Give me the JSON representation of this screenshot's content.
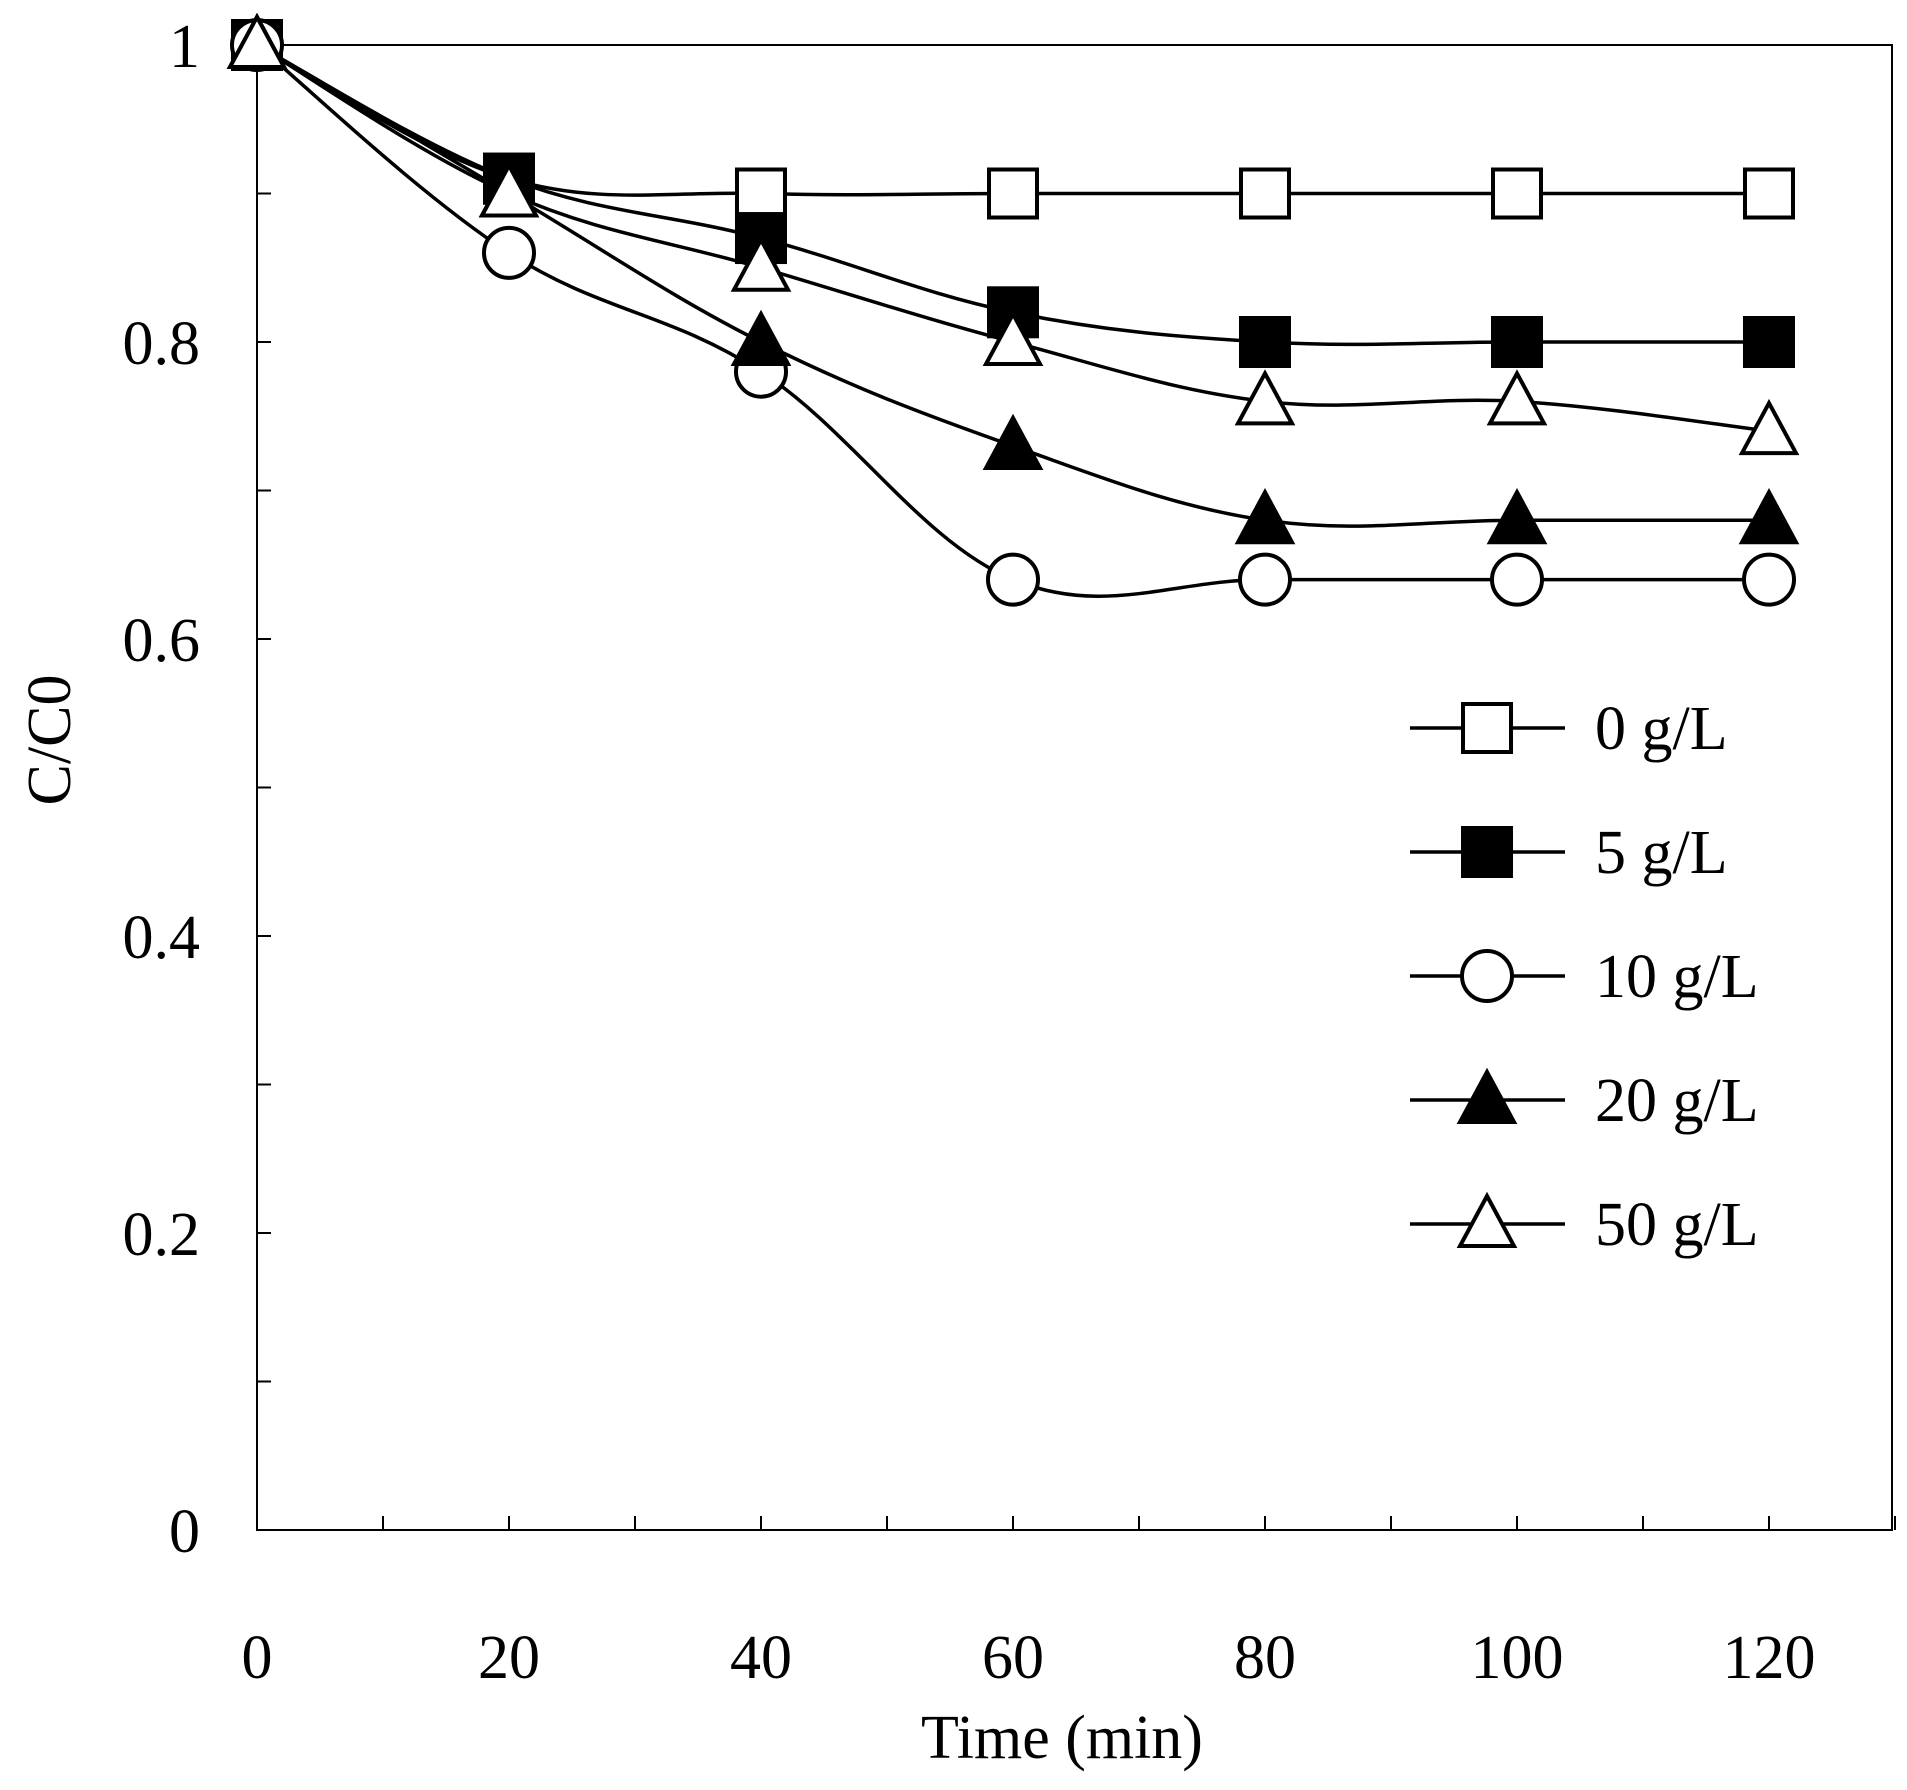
{
  "chart_data": {
    "type": "line",
    "title": "",
    "xlabel": "Time (min)",
    "ylabel": "C/C0",
    "ylabel_main": "C/C",
    "ylabel_sub": "0",
    "xlim": [
      0,
      130
    ],
    "ylim": [
      0,
      1
    ],
    "x_ticks": [
      0,
      20,
      40,
      60,
      80,
      100,
      120
    ],
    "x_minor_step": 10,
    "y_ticks": [
      0,
      0.2,
      0.4,
      0.6,
      0.8,
      1
    ],
    "y_tick_labels": [
      "0",
      "0.2",
      "0.4",
      "0.6",
      "0.8",
      "1"
    ],
    "y_minor_step": 0.1,
    "x_tick_labels": [
      "0",
      "20",
      "40",
      "60",
      "80",
      "100",
      "120"
    ],
    "legend_position": "right-middle",
    "grid": false,
    "x": [
      0,
      20,
      40,
      60,
      80,
      100,
      120
    ],
    "series": [
      {
        "name": "0 g/L",
        "marker": "square",
        "filled": false,
        "values": [
          1.0,
          0.91,
          0.9,
          0.9,
          0.9,
          0.9,
          0.9
        ]
      },
      {
        "name": "5 g/L",
        "marker": "square",
        "filled": true,
        "values": [
          1.0,
          0.91,
          0.87,
          0.82,
          0.8,
          0.8,
          0.8
        ]
      },
      {
        "name": "10 g/L",
        "marker": "circle",
        "filled": false,
        "values": [
          1.0,
          0.86,
          0.78,
          0.64,
          0.64,
          0.64,
          0.64
        ]
      },
      {
        "name": "20 g/L",
        "marker": "triangle",
        "filled": true,
        "values": [
          1.0,
          0.9,
          0.8,
          0.73,
          0.68,
          0.68,
          0.68
        ]
      },
      {
        "name": "50 g/L",
        "marker": "triangle",
        "filled": false,
        "values": [
          1.0,
          0.9,
          0.85,
          0.8,
          0.76,
          0.76,
          0.74
        ]
      }
    ]
  }
}
